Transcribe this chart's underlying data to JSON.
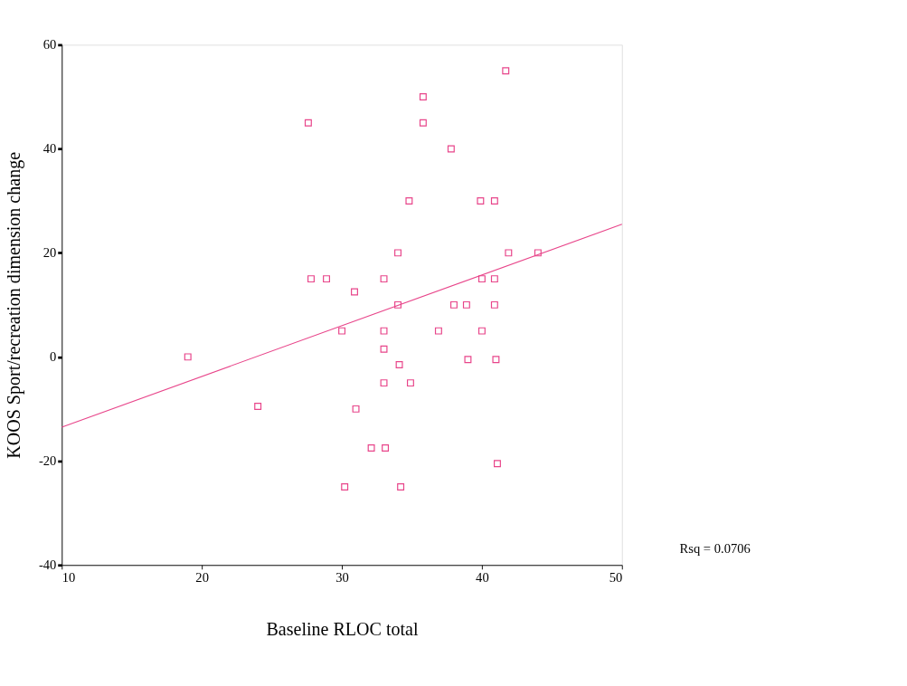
{
  "chart_data": {
    "type": "scatter",
    "xlabel": "Baseline RLOC total",
    "ylabel": "KOOS Sport/recreation dimension change",
    "xlim": [
      10,
      50
    ],
    "xticks": [
      10,
      20,
      30,
      40,
      50
    ],
    "ylim": [
      -40,
      60
    ],
    "yticks": [
      -40,
      -20,
      0,
      20,
      40,
      60
    ],
    "grid": false,
    "marker": "square",
    "annotations": [
      "Rsq = 0.0706"
    ],
    "series": [
      {
        "color": "#e8458a",
        "x": [
          19,
          24,
          27.6,
          27.8,
          28.9,
          30,
          30.9,
          31,
          30.2,
          32.1,
          33.1,
          33,
          33,
          33,
          33,
          34,
          34,
          34.1,
          34.2,
          34.9,
          34.8,
          35.8,
          35.8,
          37.8,
          36.9,
          38,
          38.9,
          39,
          39.9,
          40.9,
          40,
          40.9,
          40,
          40.9,
          41,
          41.1,
          41.7,
          41.9,
          44
        ],
        "values": [
          0,
          -9.5,
          45,
          15,
          15,
          5,
          12.5,
          -10,
          -25,
          -17.5,
          -17.5,
          15,
          5,
          1.5,
          -5,
          20,
          10,
          -1.5,
          -25,
          -5,
          30,
          50,
          45,
          40,
          5,
          10,
          10,
          -0.5,
          30,
          30,
          15,
          15,
          5,
          10,
          -0.5,
          -20.5,
          55,
          20,
          20
        ]
      },
      {
        "type": "line",
        "color": "#e8458a",
        "x": [
          10,
          50
        ],
        "values": [
          -13.5,
          25.5
        ],
        "marker": "none"
      }
    ]
  }
}
